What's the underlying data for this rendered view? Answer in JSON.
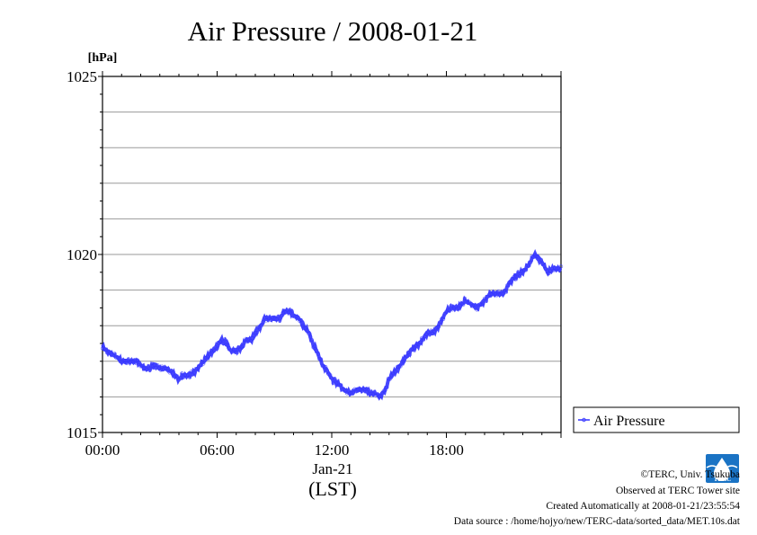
{
  "chart_data": {
    "type": "line",
    "title": "Air Pressure / 2008-01-21",
    "ylabel": "[hPa]",
    "ylim": [
      1015,
      1025
    ],
    "yticks": [
      1015,
      1020,
      1025
    ],
    "ygrid_step": 1,
    "xlim_hours": [
      0,
      24
    ],
    "xticks": [
      {
        "h": 0,
        "label": "00:00"
      },
      {
        "h": 6,
        "label": "06:00"
      },
      {
        "h": 12,
        "label": "12:00"
      },
      {
        "h": 18,
        "label": "18:00"
      }
    ],
    "xlabel_date": "Jan-21",
    "xlabel_tz": "(LST)",
    "grid": "horizontal",
    "legend_position": "right-bottom",
    "series": [
      {
        "name": "Air Pressure",
        "color": "#3333ff",
        "x_hours": [
          0,
          0.2,
          0.5,
          0.8,
          1.0,
          1.5,
          1.8,
          2.0,
          2.2,
          2.5,
          2.7,
          3.0,
          3.3,
          3.6,
          3.8,
          4.0,
          4.2,
          4.5,
          4.8,
          5.0,
          5.3,
          5.6,
          6.0,
          6.2,
          6.5,
          6.7,
          7.0,
          7.3,
          7.5,
          7.8,
          8.0,
          8.3,
          8.5,
          8.8,
          9.0,
          9.3,
          9.5,
          9.8,
          10.0,
          10.3,
          10.5,
          10.8,
          11.0,
          11.3,
          11.5,
          11.8,
          12.0,
          12.3,
          12.6,
          13.0,
          13.3,
          13.5,
          13.8,
          14.0,
          14.3,
          14.5,
          14.8,
          15.0,
          15.3,
          15.6,
          16.0,
          16.3,
          16.6,
          17.0,
          17.3,
          17.6,
          18.0,
          18.3,
          18.6,
          19.0,
          19.3,
          19.6,
          20.0,
          20.3,
          20.6,
          21.0,
          21.3,
          21.6,
          22.0,
          22.3,
          22.6,
          23.0,
          23.3,
          23.6,
          23.8,
          24.0
        ],
        "values": [
          1017.4,
          1017.3,
          1017.2,
          1017.1,
          1017.0,
          1017.0,
          1017.0,
          1016.9,
          1016.8,
          1016.8,
          1016.9,
          1016.8,
          1016.8,
          1016.7,
          1016.6,
          1016.5,
          1016.6,
          1016.6,
          1016.7,
          1016.8,
          1017.0,
          1017.2,
          1017.4,
          1017.6,
          1017.5,
          1017.3,
          1017.3,
          1017.4,
          1017.6,
          1017.6,
          1017.8,
          1018.0,
          1018.2,
          1018.2,
          1018.2,
          1018.2,
          1018.4,
          1018.4,
          1018.3,
          1018.2,
          1018.0,
          1017.8,
          1017.5,
          1017.2,
          1016.9,
          1016.7,
          1016.5,
          1016.4,
          1016.2,
          1016.1,
          1016.2,
          1016.2,
          1016.2,
          1016.1,
          1016.1,
          1016.0,
          1016.2,
          1016.5,
          1016.7,
          1016.9,
          1017.2,
          1017.4,
          1017.5,
          1017.8,
          1017.8,
          1018.0,
          1018.4,
          1018.5,
          1018.5,
          1018.7,
          1018.6,
          1018.5,
          1018.7,
          1018.9,
          1018.9,
          1018.9,
          1019.2,
          1019.4,
          1019.5,
          1019.7,
          1020.0,
          1019.8,
          1019.5,
          1019.6,
          1019.6,
          1019.6
        ]
      }
    ]
  },
  "footer": {
    "copyright": "©TERC, Univ. Tsukuba",
    "observed": "Observed at TERC Tower site",
    "created": "Created Automatically at 2008-01-21/23:55:54",
    "source": "Data source : /home/hojyo/new/TERC-data/sorted_data/MET.10s.dat"
  },
  "logo": {
    "text": "TERC",
    "color": "#1a73c4"
  }
}
